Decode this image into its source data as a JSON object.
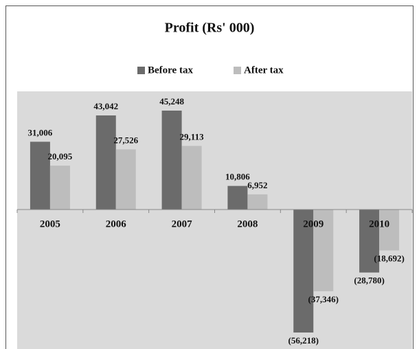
{
  "chart_data": {
    "type": "bar",
    "title": "Profit (Rs' 000)",
    "categories": [
      "2005",
      "2006",
      "2007",
      "2008",
      "2009",
      "2010"
    ],
    "series": [
      {
        "name": "Before tax",
        "color": "#6b6b6b",
        "values": [
          31006,
          43042,
          45248,
          10806,
          -56218,
          -28780
        ],
        "value_labels": [
          "31,006",
          "43,042",
          "45,248",
          "10,806",
          "(56,218)",
          "(28,780)"
        ]
      },
      {
        "name": "After tax",
        "color": "#bdbdbd",
        "values": [
          20095,
          27526,
          29113,
          6952,
          -37346,
          -18692
        ],
        "value_labels": [
          "20,095",
          "27,526",
          "29,113",
          "6,952",
          "(37,346)",
          "(18,692)"
        ]
      }
    ],
    "grid": false
  }
}
